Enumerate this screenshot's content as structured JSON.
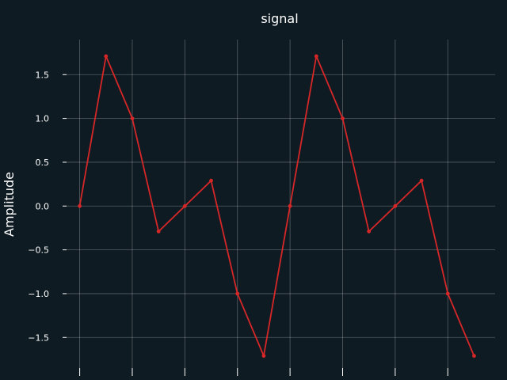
{
  "chart_data": {
    "type": "line",
    "title": "signal",
    "xlabel": "",
    "ylabel": "Amplitude",
    "x": [
      0,
      1,
      2,
      3,
      4,
      5,
      6,
      7,
      8,
      9,
      10,
      11,
      12,
      13,
      14,
      15
    ],
    "series": [
      {
        "color": "#d62728",
        "values": [
          0,
          1.71,
          1.0,
          -0.29,
          0.0,
          0.29,
          -1.0,
          -1.71,
          0.0,
          1.71,
          1.0,
          -0.29,
          0.0,
          0.29,
          -1.0,
          -1.71
        ]
      }
    ],
    "xlim": [
      -0.5,
      15.8
    ],
    "ylim": [
      -1.85,
      1.9
    ],
    "yticks": [
      1.5,
      1.0,
      0.5,
      0.0,
      -0.5,
      -1.0,
      -1.5
    ],
    "ytick_labels": [
      "1.5",
      "1.0",
      "0.5",
      "0.0",
      "−0.5",
      "−1.0",
      "−1.5"
    ],
    "xticks": [
      0,
      2,
      4,
      6,
      8,
      10,
      12,
      14
    ],
    "grid": true,
    "background": "#0e1b22"
  }
}
